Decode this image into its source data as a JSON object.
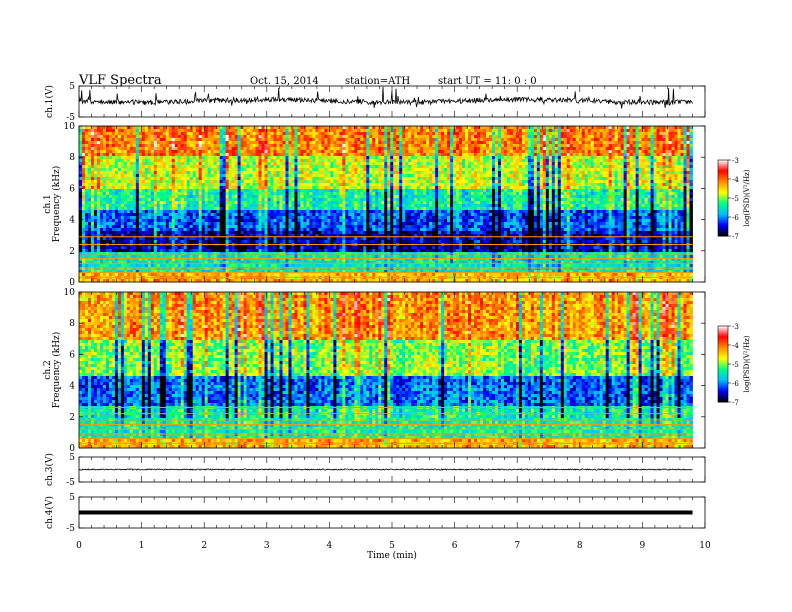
{
  "header": {
    "title": "VLF  Spectra",
    "date": "Oct. 15, 2014",
    "station": "station=ATH",
    "start": "start  UT  =    11: 0  : 0"
  },
  "chart_data": {
    "type": "heatmap",
    "title": "VLF  Spectra",
    "xlabel": "Time  (min)",
    "xlim": [
      0,
      10
    ],
    "x_ticks": [
      "0",
      "1",
      "2",
      "3",
      "4",
      "5",
      "6",
      "7",
      "8",
      "9",
      "10"
    ],
    "data_end_min": 9.8,
    "panels": [
      {
        "kind": "waveform",
        "ylabel": "ch.1(V)",
        "ylim": [
          -5,
          5
        ],
        "y_ticks": [
          "5",
          "-5"
        ],
        "level": 0.2,
        "noise": "high"
      },
      {
        "kind": "spectrogram",
        "ylabel_line1": "ch.1",
        "ylabel_line2": "Frequency  (kHz)",
        "ylim": [
          0,
          10
        ],
        "y_ticks": [
          "0",
          "2",
          "4",
          "6",
          "8",
          "10"
        ],
        "colorbar": {
          "label": "log(PSD)(V²/Hz)",
          "range": [
            -7,
            -3
          ],
          "ticks": [
            "-3",
            "-4",
            "-5",
            "-6",
            "-7"
          ]
        },
        "bands_khz": [
          {
            "from": 0,
            "to": 0.6,
            "log_psd": -4.3
          },
          {
            "from": 0.6,
            "to": 2.0,
            "log_psd": -5.5
          },
          {
            "from": 2.0,
            "to": 3.3,
            "log_psd": -6.6
          },
          {
            "from": 3.3,
            "to": 4.6,
            "log_psd": -6.2
          },
          {
            "from": 4.6,
            "to": 6.0,
            "log_psd": -5.4
          },
          {
            "from": 6.0,
            "to": 8.0,
            "log_psd": -4.8
          },
          {
            "from": 8.0,
            "to": 10.0,
            "log_psd": -4.1
          }
        ]
      },
      {
        "kind": "spectrogram",
        "ylabel_line1": "ch.2",
        "ylabel_line2": "Frequency  (kHz)",
        "ylim": [
          0,
          10
        ],
        "y_ticks": [
          "0",
          "2",
          "4",
          "6",
          "8",
          "10"
        ],
        "colorbar": {
          "label": "log(PSD)(V²/Hz)",
          "range": [
            -7,
            -3
          ],
          "ticks": [
            "-3",
            "-4",
            "-5",
            "-6",
            "-7"
          ]
        },
        "bands_khz": [
          {
            "from": 0,
            "to": 0.6,
            "log_psd": -4.3
          },
          {
            "from": 0.6,
            "to": 2.6,
            "log_psd": -5.4
          },
          {
            "from": 2.6,
            "to": 4.6,
            "log_psd": -6.1
          },
          {
            "from": 4.6,
            "to": 7.0,
            "log_psd": -5.0
          },
          {
            "from": 7.0,
            "to": 10.0,
            "log_psd": -4.2
          }
        ]
      },
      {
        "kind": "waveform",
        "ylabel": "ch.3(V)",
        "ylim": [
          -5,
          5
        ],
        "y_ticks": [
          "5",
          "-5"
        ],
        "level": 0.0,
        "noise": "low"
      },
      {
        "kind": "waveform",
        "ylabel": "ch.4(V)",
        "ylim": [
          -5,
          5
        ],
        "y_ticks": [
          "5",
          "-5"
        ],
        "level": 0.0,
        "noise": "flat"
      }
    ]
  },
  "colors": {
    "colormap": [
      "#000000",
      "#0000ff",
      "#00bfff",
      "#00ff7f",
      "#ffff00",
      "#ff8c00",
      "#ff0000",
      "#ffffff"
    ]
  }
}
